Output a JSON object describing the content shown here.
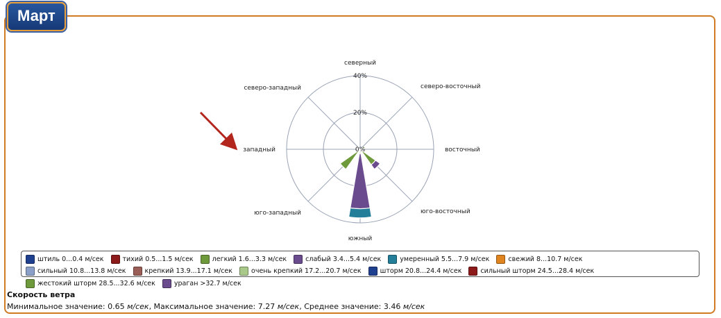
{
  "window": {
    "title": "Март"
  },
  "colors": {
    "frame": "#d07a22",
    "badge": "#1f4a8f",
    "grid": "#9aa3b5",
    "arrow": "#b3261e"
  },
  "chart_data": {
    "type": "wind-rose",
    "unit": "%",
    "radial_ticks": [
      "0%",
      "20%",
      "40%"
    ],
    "radial_max": 40,
    "directions": [
      "северный",
      "северо-восточный",
      "восточный",
      "юго-восточный",
      "южный",
      "юго-западный",
      "западный",
      "северо-западный"
    ],
    "sector_angles": [
      0,
      22.5,
      45,
      67.5,
      90,
      112.5,
      135,
      157.5,
      180,
      202.5,
      225,
      247.5,
      270,
      292.5,
      315,
      337.5
    ],
    "series": [
      {
        "name": "штиль 0...0.4 м/сек",
        "color": "#1f3f8f",
        "values": [
          0,
          0,
          0,
          0,
          0,
          0,
          0,
          0,
          0,
          0,
          0,
          0,
          0,
          0,
          0,
          0
        ]
      },
      {
        "name": "тихий 0.5...1.5 м/сек",
        "color": "#8c1a1a",
        "values": [
          0,
          0.3,
          0.5,
          0.8,
          0.4,
          0.3,
          0.3,
          0.3,
          0.3,
          0.2,
          0.3,
          0.4,
          0.3,
          0.2,
          0.3,
          0.3
        ]
      },
      {
        "name": "легкий 1.6...3.3 м/сек",
        "color": "#6f9a3c",
        "values": [
          0,
          0,
          0,
          2,
          0,
          0,
          10,
          1.5,
          2,
          0.5,
          13,
          1.5,
          1,
          0.5,
          0.5,
          0
        ]
      },
      {
        "name": "слабый 3.4...5.4 м/сек",
        "color": "#6a4b8e",
        "values": [
          0,
          0,
          0,
          0,
          0,
          0,
          3,
          0,
          30,
          0,
          0,
          0,
          0,
          0,
          0,
          0
        ]
      },
      {
        "name": "умеренный 5.5...7.9 м/сек",
        "color": "#227e99",
        "values": [
          0,
          0,
          0,
          0,
          0,
          0,
          0,
          0,
          5,
          0,
          0,
          0,
          0,
          0,
          0,
          0
        ]
      },
      {
        "name": "свежий 8...10.7 м/сек",
        "color": "#e0841f",
        "values": [
          0,
          0,
          0,
          0,
          0,
          0,
          0,
          0,
          0,
          0,
          0,
          0,
          0,
          0,
          0,
          0
        ]
      },
      {
        "name": "сильный 10.8...13.8 м/сек",
        "color": "#8aa0c8",
        "values": [
          0,
          0,
          0,
          0,
          0,
          0,
          0,
          0,
          0,
          0,
          0,
          0,
          0,
          0,
          0,
          0
        ]
      },
      {
        "name": "крепкий 13.9...17.1 м/сек",
        "color": "#9b5e57",
        "values": [
          0,
          0,
          0,
          0,
          0,
          0,
          0,
          0,
          0,
          0,
          0,
          0,
          0,
          0,
          0,
          0
        ]
      },
      {
        "name": "очень крепкий 17.2...20.7 м/сек",
        "color": "#a9c98a",
        "values": [
          0,
          0,
          0,
          0,
          0,
          0,
          0,
          0,
          0,
          0,
          0,
          0,
          0,
          0,
          0,
          0
        ]
      },
      {
        "name": "шторм 20.8...24.4 м/сек",
        "color": "#1f3f8f",
        "values": [
          0,
          0,
          0,
          0,
          0,
          0,
          0,
          0,
          0,
          0,
          0,
          0,
          0,
          0,
          0,
          0
        ]
      },
      {
        "name": "сильный шторм 24.5...28.4 м/сек",
        "color": "#8c1a1a",
        "values": [
          0,
          0,
          0,
          0,
          0,
          0,
          0,
          0,
          0,
          0,
          0,
          0,
          0,
          0,
          0,
          0
        ]
      },
      {
        "name": "жестокий шторм 28.5...32.6 м/сек",
        "color": "#6f9a3c",
        "values": [
          0,
          0,
          0,
          0,
          0,
          0,
          0,
          0,
          0,
          0,
          0,
          0,
          0,
          0,
          0,
          0
        ]
      },
      {
        "name": "ураган >32.7 м/сек",
        "color": "#6a4b8e",
        "values": [
          0,
          0,
          0,
          0,
          0,
          0,
          0,
          0,
          0,
          0,
          0,
          0,
          0,
          0,
          0,
          0
        ]
      }
    ]
  },
  "info": {
    "heading": "Скорость ветра",
    "min_label": "Минимальное значение: ",
    "min_value": "0.65",
    "max_label": ", Максимальное значение: ",
    "max_value": "7.27",
    "avg_label": ", Среднее значение: ",
    "avg_value": "3.46",
    "unit": "м/сек"
  }
}
